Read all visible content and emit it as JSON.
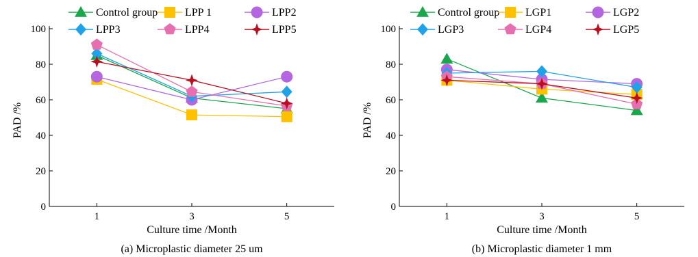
{
  "colors": {
    "control": "#1aa64a",
    "s1": "#ffc000",
    "s2": "#b366e0",
    "s3": "#1fa2e8",
    "s4": "#e66fb0",
    "s5": "#b80f1f"
  },
  "chart_data": [
    {
      "type": "line",
      "caption": "(a) Microplastic diameter 25 um",
      "xlabel": "Culture time /Month",
      "ylabel": "PAD /%",
      "x": [
        1,
        3,
        5
      ],
      "xlim": [
        0,
        6
      ],
      "ylim": [
        0,
        100
      ],
      "yticks": [
        0,
        20,
        40,
        60,
        80,
        100
      ],
      "grid": false,
      "legend_position": "top",
      "series": [
        {
          "name": "Control group",
          "marker": "triangle",
          "color": "#1aa64a",
          "values": [
            85,
            61,
            55
          ]
        },
        {
          "name": "LPP 1",
          "marker": "square",
          "color": "#ffc000",
          "values": [
            71.5,
            51.5,
            50.5
          ]
        },
        {
          "name": "LPP2",
          "marker": "circle",
          "color": "#b366e0",
          "values": [
            73,
            60,
            73
          ]
        },
        {
          "name": "LPP3",
          "marker": "diamond",
          "color": "#1fa2e8",
          "values": [
            86,
            62,
            64.5
          ]
        },
        {
          "name": "LPP4",
          "marker": "pentagon",
          "color": "#e66fb0",
          "values": [
            91,
            64.5,
            56.5
          ]
        },
        {
          "name": "LPP5",
          "marker": "star",
          "color": "#b80f1f",
          "values": [
            81.5,
            71,
            58
          ]
        }
      ]
    },
    {
      "type": "line",
      "caption": "(b) Microplastic diameter 1 mm",
      "xlabel": "Culture time /Month",
      "ylabel": "PAD /%",
      "x": [
        1,
        3,
        5
      ],
      "xlim": [
        0,
        6
      ],
      "ylim": [
        0,
        100
      ],
      "yticks": [
        0,
        20,
        40,
        60,
        80,
        100
      ],
      "grid": false,
      "legend_position": "top",
      "series": [
        {
          "name": "Control group",
          "marker": "triangle",
          "color": "#1aa64a",
          "values": [
            83,
            61,
            54
          ]
        },
        {
          "name": "LGP1",
          "marker": "square",
          "color": "#ffc000",
          "values": [
            71,
            66,
            63
          ]
        },
        {
          "name": "LGP2",
          "marker": "circle",
          "color": "#b366e0",
          "values": [
            77,
            71.5,
            69
          ]
        },
        {
          "name": "LGP3",
          "marker": "diamond",
          "color": "#1fa2e8",
          "values": [
            75,
            76,
            67
          ]
        },
        {
          "name": "LGP4",
          "marker": "pentagon",
          "color": "#e66fb0",
          "values": [
            73,
            69,
            57.5
          ]
        },
        {
          "name": "LGP5",
          "marker": "star",
          "color": "#b80f1f",
          "values": [
            71,
            69,
            61
          ]
        }
      ]
    }
  ]
}
